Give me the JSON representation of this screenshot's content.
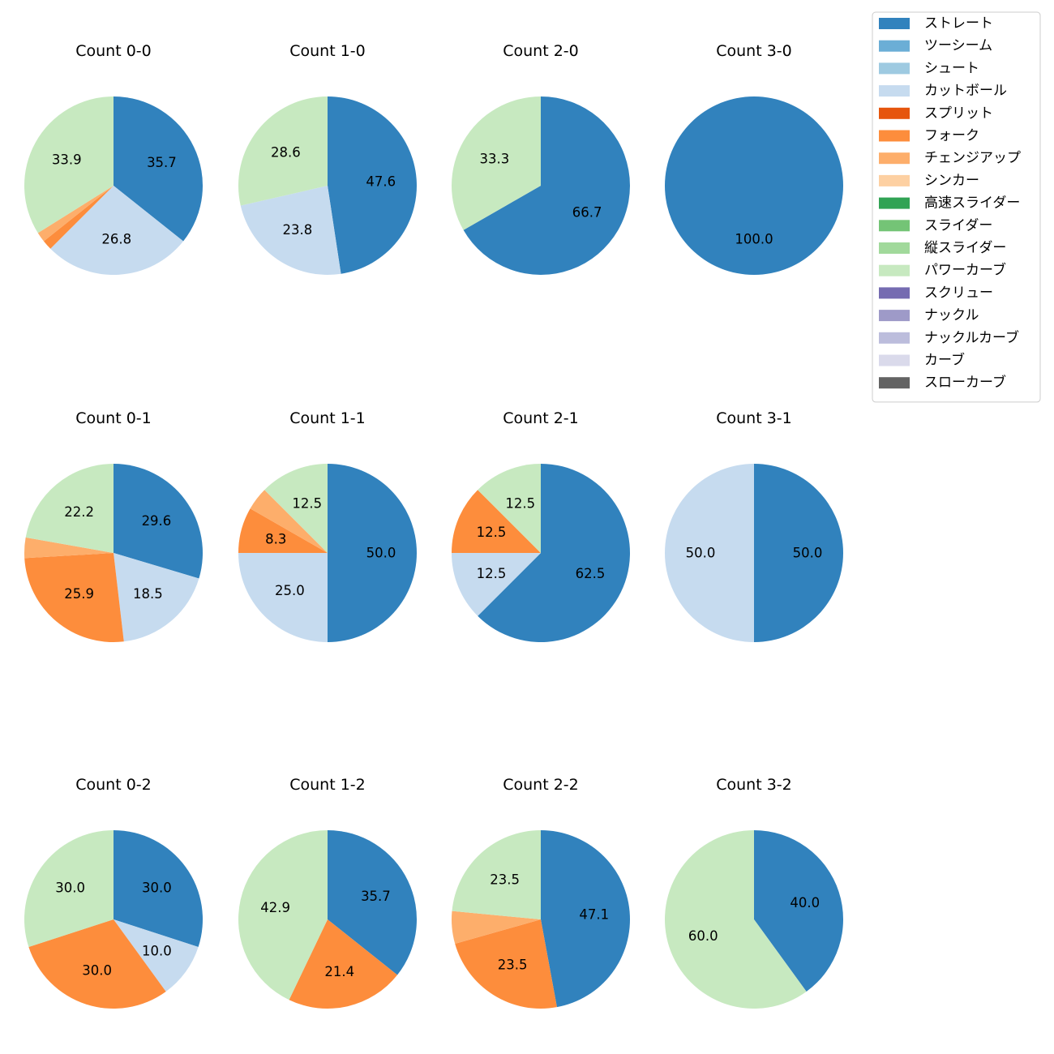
{
  "legend": {
    "placement": "top-right",
    "entries": [
      {
        "label": "ストレート",
        "color": "#3182bd"
      },
      {
        "label": "ツーシーム",
        "color": "#6baed6"
      },
      {
        "label": "シュート",
        "color": "#9ecae1"
      },
      {
        "label": "カットボール",
        "color": "#c6dbef"
      },
      {
        "label": "スプリット",
        "color": "#e6550d"
      },
      {
        "label": "フォーク",
        "color": "#fd8d3c"
      },
      {
        "label": "チェンジアップ",
        "color": "#fdae6b"
      },
      {
        "label": "シンカー",
        "color": "#fdd0a2"
      },
      {
        "label": "高速スライダー",
        "color": "#31a354"
      },
      {
        "label": "スライダー",
        "color": "#74c476"
      },
      {
        "label": "縦スライダー",
        "color": "#a1d99b"
      },
      {
        "label": "パワーカーブ",
        "color": "#c7e9c0"
      },
      {
        "label": "スクリュー",
        "color": "#756bb1"
      },
      {
        "label": "ナックル",
        "color": "#9e9ac8"
      },
      {
        "label": "ナックルカーブ",
        "color": "#bcbddc"
      },
      {
        "label": "カーブ",
        "color": "#dadaeb"
      },
      {
        "label": "スローカーブ",
        "color": "#636363"
      }
    ]
  },
  "chart_data": [
    {
      "type": "pie",
      "title": "Count 0-0",
      "slices": [
        {
          "name": "ストレート",
          "value": 35.7,
          "label": "35.7"
        },
        {
          "name": "カットボール",
          "value": 26.8,
          "label": "26.8"
        },
        {
          "name": "フォーク",
          "value": 1.8,
          "label": ""
        },
        {
          "name": "チェンジアップ",
          "value": 1.8,
          "label": ""
        },
        {
          "name": "パワーカーブ",
          "value": 33.9,
          "label": "33.9"
        }
      ]
    },
    {
      "type": "pie",
      "title": "Count 1-0",
      "slices": [
        {
          "name": "ストレート",
          "value": 47.6,
          "label": "47.6"
        },
        {
          "name": "カットボール",
          "value": 23.8,
          "label": "23.8"
        },
        {
          "name": "パワーカーブ",
          "value": 28.6,
          "label": "28.6"
        }
      ]
    },
    {
      "type": "pie",
      "title": "Count 2-0",
      "slices": [
        {
          "name": "ストレート",
          "value": 66.7,
          "label": "66.7"
        },
        {
          "name": "パワーカーブ",
          "value": 33.3,
          "label": "33.3"
        }
      ]
    },
    {
      "type": "pie",
      "title": "Count 3-0",
      "slices": [
        {
          "name": "ストレート",
          "value": 100.0,
          "label": "100.0"
        }
      ]
    },
    {
      "type": "pie",
      "title": "Count 0-1",
      "slices": [
        {
          "name": "ストレート",
          "value": 29.6,
          "label": "29.6"
        },
        {
          "name": "カットボール",
          "value": 18.5,
          "label": "18.5"
        },
        {
          "name": "フォーク",
          "value": 25.9,
          "label": "25.9"
        },
        {
          "name": "チェンジアップ",
          "value": 3.7,
          "label": ""
        },
        {
          "name": "パワーカーブ",
          "value": 22.2,
          "label": "22.2"
        }
      ]
    },
    {
      "type": "pie",
      "title": "Count 1-1",
      "slices": [
        {
          "name": "ストレート",
          "value": 50.0,
          "label": "50.0"
        },
        {
          "name": "カットボール",
          "value": 25.0,
          "label": "25.0"
        },
        {
          "name": "フォーク",
          "value": 8.3,
          "label": "8.3"
        },
        {
          "name": "チェンジアップ",
          "value": 4.2,
          "label": ""
        },
        {
          "name": "パワーカーブ",
          "value": 12.5,
          "label": "12.5"
        }
      ]
    },
    {
      "type": "pie",
      "title": "Count 2-1",
      "slices": [
        {
          "name": "ストレート",
          "value": 62.5,
          "label": "62.5"
        },
        {
          "name": "カットボール",
          "value": 12.5,
          "label": "12.5"
        },
        {
          "name": "フォーク",
          "value": 12.5,
          "label": "12.5"
        },
        {
          "name": "パワーカーブ",
          "value": 12.5,
          "label": "12.5"
        }
      ]
    },
    {
      "type": "pie",
      "title": "Count 3-1",
      "slices": [
        {
          "name": "ストレート",
          "value": 50.0,
          "label": "50.0"
        },
        {
          "name": "カットボール",
          "value": 50.0,
          "label": "50.0"
        }
      ]
    },
    {
      "type": "pie",
      "title": "Count 0-2",
      "slices": [
        {
          "name": "ストレート",
          "value": 30.0,
          "label": "30.0"
        },
        {
          "name": "カットボール",
          "value": 10.0,
          "label": "10.0"
        },
        {
          "name": "フォーク",
          "value": 30.0,
          "label": "30.0"
        },
        {
          "name": "パワーカーブ",
          "value": 30.0,
          "label": "30.0"
        }
      ]
    },
    {
      "type": "pie",
      "title": "Count 1-2",
      "slices": [
        {
          "name": "ストレート",
          "value": 35.7,
          "label": "35.7"
        },
        {
          "name": "フォーク",
          "value": 21.4,
          "label": "21.4"
        },
        {
          "name": "パワーカーブ",
          "value": 42.9,
          "label": "42.9"
        }
      ]
    },
    {
      "type": "pie",
      "title": "Count 2-2",
      "slices": [
        {
          "name": "ストレート",
          "value": 47.1,
          "label": "47.1"
        },
        {
          "name": "フォーク",
          "value": 23.5,
          "label": "23.5"
        },
        {
          "name": "チェンジアップ",
          "value": 5.9,
          "label": ""
        },
        {
          "name": "パワーカーブ",
          "value": 23.5,
          "label": "23.5"
        }
      ]
    },
    {
      "type": "pie",
      "title": "Count 3-2",
      "slices": [
        {
          "name": "ストレート",
          "value": 40.0,
          "label": "40.0"
        },
        {
          "name": "パワーカーブ",
          "value": 60.0,
          "label": "60.0"
        }
      ]
    }
  ]
}
